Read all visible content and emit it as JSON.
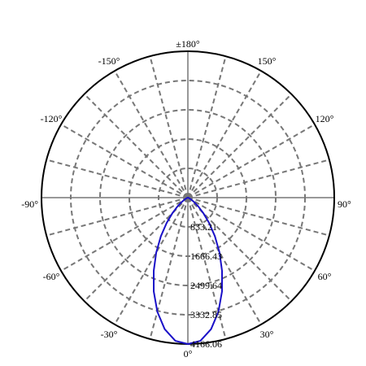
{
  "chart_data": {
    "type": "polar",
    "angle_labels": [
      {
        "angle": 180,
        "text": "±180°"
      },
      {
        "angle": -150,
        "text": "-150°"
      },
      {
        "angle": 150,
        "text": "150°"
      },
      {
        "angle": -120,
        "text": "-120°"
      },
      {
        "angle": 120,
        "text": "120°"
      },
      {
        "angle": -90,
        "text": "-90°"
      },
      {
        "angle": 90,
        "text": "90°"
      },
      {
        "angle": -60,
        "text": "-60°"
      },
      {
        "angle": 60,
        "text": "60°"
      },
      {
        "angle": -30,
        "text": "-30°"
      },
      {
        "angle": 30,
        "text": "30°"
      },
      {
        "angle": 0,
        "text": "0°"
      }
    ],
    "angle_spoke_step": 15,
    "radial_ticks": [
      "833.21",
      "1666.43",
      "2499.64",
      "3332.85",
      "4166.06"
    ],
    "radial_max": 4166.06,
    "grid": true,
    "grid_color": "#777777",
    "series_color": "#1a10c8",
    "series": [
      {
        "angles": [
          0,
          5,
          10,
          15,
          20,
          25,
          30,
          35,
          40,
          45,
          50,
          55,
          60,
          70,
          80,
          90
        ],
        "values": [
          4166.06,
          4090,
          3800,
          3360,
          2840,
          2300,
          1800,
          1340,
          940,
          620,
          380,
          210,
          110,
          30,
          5,
          0
        ]
      }
    ]
  }
}
